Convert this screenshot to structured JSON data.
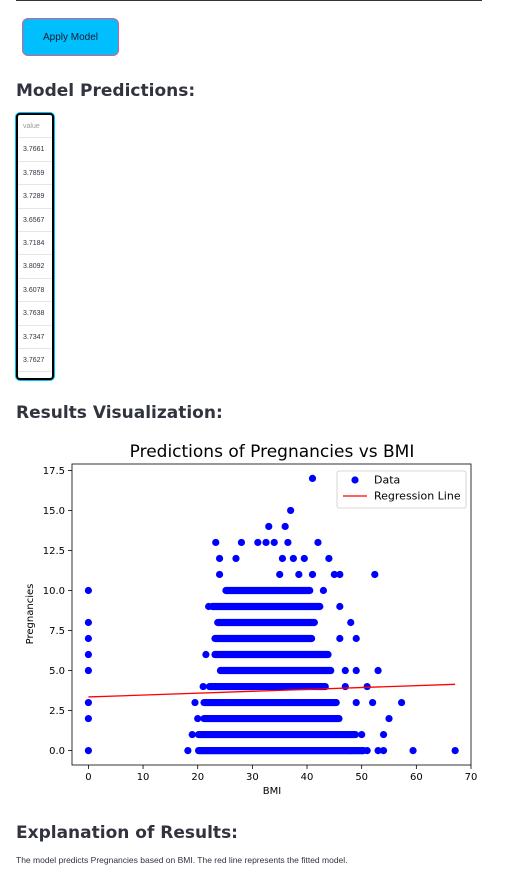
{
  "button": {
    "label": "Apply Model"
  },
  "headings": {
    "predictions": "Model Predictions:",
    "visualization": "Results Visualization:",
    "explanation": "Explanation of Results:"
  },
  "predictions_table": {
    "header": "value",
    "rows": [
      "3.7661",
      "3.7859",
      "3.7289",
      "3.6567",
      "3.7184",
      "3.8092",
      "3.6078",
      "3.7638",
      "3.7347",
      "3.7627"
    ]
  },
  "explanation_text": "The model predicts Pregnancies based on BMI. The red line represents the fitted model.",
  "chart_data": {
    "type": "scatter",
    "title": "Predictions of Pregnancies vs BMI",
    "xlabel": "BMI",
    "ylabel": "Pregnancies",
    "xlim": [
      -3,
      70
    ],
    "ylim": [
      -0.9,
      17.9
    ],
    "xticks": [
      "0",
      "10",
      "20",
      "30",
      "40",
      "50",
      "60",
      "70"
    ],
    "yticks": [
      "0.0",
      "2.5",
      "5.0",
      "7.5",
      "10.0",
      "12.5",
      "15.0",
      "17.5"
    ],
    "legend": {
      "position": "top-right",
      "entries": [
        "Data",
        "Regression Line"
      ]
    },
    "colors": {
      "data": "#0000ff",
      "line": "#ff0000"
    },
    "regression_line": {
      "x": [
        0,
        67.1
      ],
      "y": [
        3.35,
        4.14
      ]
    },
    "series": [
      {
        "name": "Data",
        "points": [
          [
            0,
            0
          ],
          [
            0,
            2
          ],
          [
            0,
            3
          ],
          [
            0,
            5
          ],
          [
            0,
            6
          ],
          [
            0,
            7
          ],
          [
            0,
            8
          ],
          [
            0,
            10
          ],
          [
            18.2,
            0
          ],
          [
            19,
            1
          ],
          [
            20,
            2
          ],
          [
            19.5,
            3
          ],
          [
            21,
            4
          ],
          [
            21.5,
            6
          ],
          [
            22,
            9
          ],
          [
            23.3,
            13
          ],
          [
            24,
            12
          ],
          [
            24,
            11
          ],
          [
            27,
            12
          ],
          [
            28,
            13
          ],
          [
            31,
            13
          ],
          [
            32.5,
            13
          ],
          [
            33,
            14
          ],
          [
            34,
            13
          ],
          [
            35,
            11
          ],
          [
            35.5,
            12
          ],
          [
            36,
            14
          ],
          [
            36.5,
            13
          ],
          [
            37,
            15
          ],
          [
            37.5,
            12
          ],
          [
            38.5,
            11
          ],
          [
            39.5,
            12
          ],
          [
            40.5,
            10
          ],
          [
            41,
            17
          ],
          [
            41,
            11
          ],
          [
            42,
            13
          ],
          [
            43,
            10
          ],
          [
            44,
            12
          ],
          [
            45,
            11
          ],
          [
            46,
            9
          ],
          [
            46,
            7
          ],
          [
            46,
            11
          ],
          [
            47,
            5
          ],
          [
            47,
            4
          ],
          [
            48,
            8
          ],
          [
            48,
            0
          ],
          [
            49,
            3
          ],
          [
            49,
            5
          ],
          [
            49,
            7
          ],
          [
            50,
            0
          ],
          [
            50,
            1
          ],
          [
            51,
            0
          ],
          [
            51,
            4
          ],
          [
            52,
            3
          ],
          [
            52.4,
            11
          ],
          [
            53,
            5
          ],
          [
            53,
            0
          ],
          [
            54,
            0
          ],
          [
            54,
            1
          ],
          [
            55,
            2
          ],
          [
            57.3,
            3
          ],
          [
            59.4,
            0
          ],
          [
            67.1,
            0
          ]
        ]
      }
    ]
  }
}
